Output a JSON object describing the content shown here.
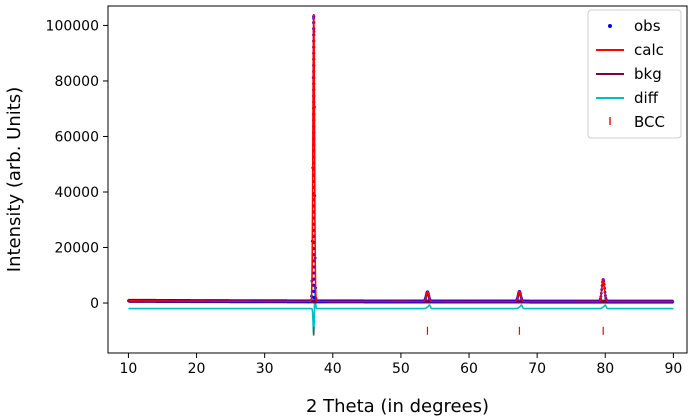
{
  "chart_data": {
    "type": "line",
    "title": "",
    "xlabel": "2 Theta (in degrees)",
    "ylabel": "Intensity (arb. Units)",
    "xlim": [
      7,
      92
    ],
    "ylim": [
      -18000,
      107000
    ],
    "xticks": [
      10,
      20,
      30,
      40,
      50,
      60,
      70,
      80,
      90
    ],
    "yticks": [
      0,
      20000,
      40000,
      60000,
      80000,
      100000
    ],
    "legend_position": "top-right",
    "grid": false,
    "peaks": [
      {
        "x": 37.2,
        "obs": 104000,
        "diff_min": -12000
      },
      {
        "x": 53.9,
        "obs": 4000,
        "diff_min": -1500
      },
      {
        "x": 67.4,
        "obs": 4200,
        "diff_min": -1500
      },
      {
        "x": 79.7,
        "obs": 8500,
        "diff_min": -1500
      }
    ],
    "background_level": 500,
    "diff_offset": -2000,
    "bcc_tick_level": -10000,
    "bcc_positions": [
      37.2,
      53.9,
      67.4,
      79.7
    ],
    "series": [
      {
        "name": "obs",
        "style": "marker",
        "color": "#0000ff"
      },
      {
        "name": "calc",
        "style": "line",
        "color": "#ff0000"
      },
      {
        "name": "bkg",
        "style": "line",
        "color": "#800040"
      },
      {
        "name": "diff",
        "style": "line",
        "color": "#00bfbf"
      },
      {
        "name": "BCC",
        "style": "tick",
        "color": "#ff0000"
      }
    ]
  }
}
